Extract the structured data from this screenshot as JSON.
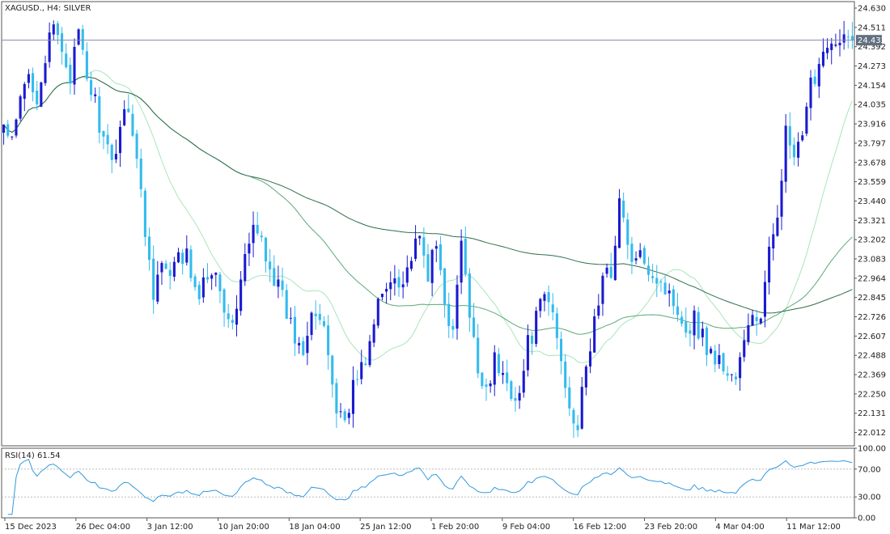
{
  "header": {
    "symbol_label": "XAGUSD., H4:  SILVER"
  },
  "rsi": {
    "label": "RSI(14) 61.54",
    "levels": [
      30,
      70
    ]
  },
  "colors": {
    "bull": "#1a1ad0",
    "bear": "#33bbee",
    "ma_fast": "#a8e6b8",
    "ma_mid": "#5ca877",
    "ma_slow": "#2f6e4a",
    "rsi_line": "#3399dd",
    "bid_line": "#8888aa",
    "price_tag": "#607080"
  },
  "chart_data": {
    "type": "candlestick",
    "symbol": "XAGUSD.",
    "timeframe": "H4",
    "y_ticks": [
      "24.630",
      "24.511",
      "24.392",
      "24.273",
      "24.154",
      "24.035",
      "23.916",
      "23.797",
      "23.678",
      "23.559",
      "23.440",
      "23.321",
      "23.202",
      "23.083",
      "22.964",
      "22.845",
      "22.726",
      "22.607",
      "22.488",
      "22.369",
      "22.250",
      "22.131",
      "22.012"
    ],
    "ylim": [
      21.93,
      24.67
    ],
    "current_price": "24.432",
    "x_ticks": [
      "15 Dec 2023",
      "26 Dec 04:00",
      "3 Jan 12:00",
      "10 Jan 20:00",
      "18 Jan 04:00",
      "25 Jan 12:00",
      "1 Feb 20:00",
      "9 Feb 04:00",
      "16 Feb 12:00",
      "23 Feb 20:00",
      "4 Mar 04:00",
      "11 Mar 12:00"
    ],
    "rsi_ticks": [
      "100.00",
      "70.00",
      "30.00",
      "0.00"
    ],
    "rsi_ylim": [
      0,
      100
    ],
    "anchors": [
      23.9,
      23.78,
      24.05,
      24.22,
      24.1,
      24.32,
      24.5,
      24.38,
      24.22,
      24.45,
      24.2,
      24.05,
      23.8,
      23.65,
      23.92,
      24.05,
      23.7,
      23.25,
      22.9,
      23.05,
      22.95,
      23.08,
      23.1,
      22.85,
      22.92,
      23.05,
      22.95,
      22.65,
      22.8,
      23.08,
      23.25,
      23.2,
      23.05,
      22.9,
      22.75,
      22.6,
      22.55,
      22.8,
      22.7,
      22.5,
      22.15,
      22.1,
      22.3,
      22.4,
      22.55,
      22.8,
      22.9,
      23.0,
      22.95,
      23.1,
      23.18,
      23.0,
      23.15,
      22.85,
      22.6,
      23.2,
      22.7,
      22.4,
      22.3,
      22.45,
      22.35,
      22.28,
      22.25,
      22.55,
      22.7,
      22.85,
      22.75,
      22.45,
      22.2,
      22.05,
      22.4,
      22.7,
      22.95,
      23.0,
      23.45,
      23.15,
      23.05,
      23.1,
      23.0,
      22.95,
      22.85,
      22.8,
      22.65,
      22.72,
      22.6,
      22.5,
      22.45,
      22.38,
      22.35,
      22.55,
      22.75,
      22.7,
      23.1,
      23.4,
      23.85,
      23.7,
      23.8,
      24.15,
      24.3,
      24.45,
      24.38,
      24.42,
      24.43
    ],
    "series": [
      {
        "name": "",
        "kind": "ma",
        "period": 20
      },
      {
        "name": "",
        "kind": "ma",
        "period": 60
      },
      {
        "name": "",
        "kind": "ma",
        "period": 150
      }
    ]
  }
}
